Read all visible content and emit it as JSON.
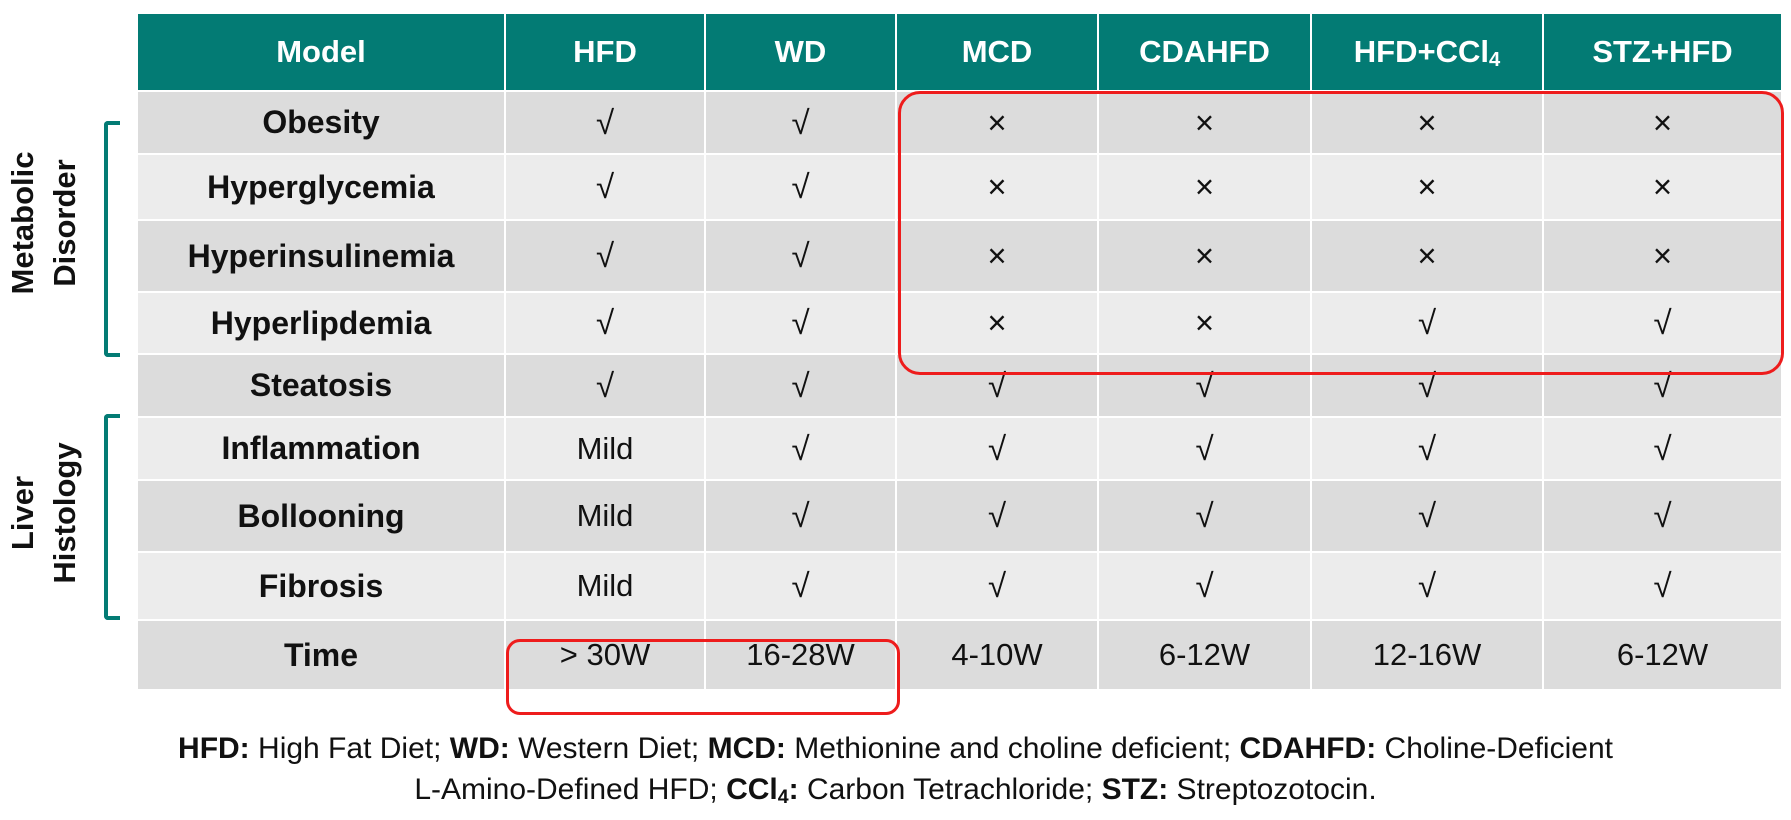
{
  "table": {
    "header": [
      "Model",
      "HFD",
      "WD",
      "MCD",
      "CDAHFD",
      "HFD+CCl",
      "STZ+HFD"
    ],
    "header_subscript": "4",
    "rows": [
      {
        "label": "Obesity",
        "cells": [
          "√",
          "√",
          "×",
          "×",
          "×",
          "×"
        ]
      },
      {
        "label": "Hyperglycemia",
        "cells": [
          "√",
          "√",
          "×",
          "×",
          "×",
          "×"
        ]
      },
      {
        "label": "Hyperinsulinemia",
        "cells": [
          "√",
          "√",
          "×",
          "×",
          "×",
          "×"
        ]
      },
      {
        "label": "Hyperlipdemia",
        "cells": [
          "√",
          "√",
          "×",
          "×",
          "√",
          "√"
        ]
      },
      {
        "label": "Steatosis",
        "cells": [
          "√",
          "√",
          "√",
          "√",
          "√",
          "√"
        ]
      },
      {
        "label": "Inflammation",
        "cells": [
          "Mild",
          "√",
          "√",
          "√",
          "√",
          "√"
        ]
      },
      {
        "label": "Bollooning",
        "cells": [
          "Mild",
          "√",
          "√",
          "√",
          "√",
          "√"
        ]
      },
      {
        "label": "Fibrosis",
        "cells": [
          "Mild",
          "√",
          "√",
          "√",
          "√",
          "√"
        ]
      },
      {
        "label": "Time",
        "cells": [
          "> 30W",
          "16-28W",
          "4-10W",
          "6-12W",
          "12-16W",
          "6-12W"
        ]
      }
    ]
  },
  "groups": {
    "metabolic": {
      "line1": "Metabolic",
      "line2": "Disorder"
    },
    "liver": {
      "line1": "Liver",
      "line2": "Histology"
    }
  },
  "footnote": {
    "line1": [
      {
        "abbr": "HFD:",
        "text": " High Fat Diet; "
      },
      {
        "abbr": "WD:",
        "text": " Western Diet; "
      },
      {
        "abbr": "MCD:",
        "text": " Methionine and choline deficient; "
      },
      {
        "abbr": "CDAHFD:",
        "text": " Choline-Deficient"
      }
    ],
    "line2_lead": "L-Amino-Defined HFD; ",
    "ccl_abbr": "CCl",
    "ccl_sub": "4",
    "ccl_colon": ":",
    "ccl_text": " Carbon Tetrachloride; ",
    "stz_abbr": "STZ:",
    "stz_text": " Streptozotocin."
  },
  "colors": {
    "header_bg": "#037b74",
    "row_dark": "#dcdcdc",
    "row_light": "#ececec",
    "highlight": "#ee1c1c",
    "bracket": "#037b74"
  }
}
